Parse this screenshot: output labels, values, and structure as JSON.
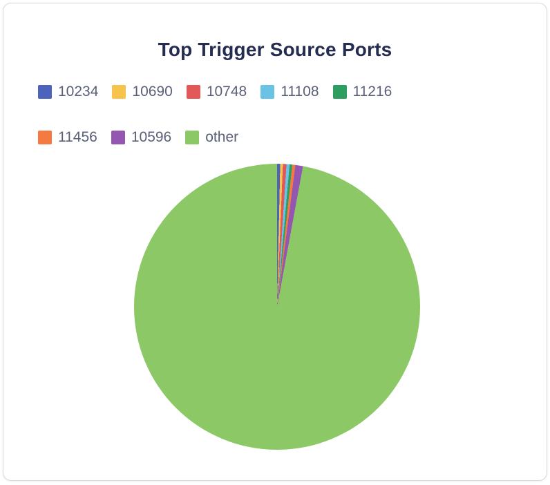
{
  "card": {
    "title": "Top Trigger Source Ports"
  },
  "colors": {
    "title_text": "#242c52",
    "legend_text": "#5a6078",
    "card_border": "#d9d9d9",
    "background": "#ffffff"
  },
  "chart_data": {
    "type": "pie",
    "title": "Top Trigger Source Ports",
    "legend_position": "top-left",
    "start_angle_deg": 0,
    "direction": "clockwise",
    "units": "percent",
    "series": [
      {
        "label": "10234",
        "value": 0.35,
        "color": "#4d64bd"
      },
      {
        "label": "10690",
        "value": 0.3,
        "color": "#f6c44c"
      },
      {
        "label": "10748",
        "value": 0.4,
        "color": "#e25757"
      },
      {
        "label": "11108",
        "value": 0.35,
        "color": "#6ac2e4"
      },
      {
        "label": "11216",
        "value": 0.3,
        "color": "#2e9e60"
      },
      {
        "label": "11456",
        "value": 0.35,
        "color": "#f47a42"
      },
      {
        "label": "10596",
        "value": 0.85,
        "color": "#9357b1"
      },
      {
        "label": "other",
        "value": 97.1,
        "color": "#8cc866"
      }
    ]
  }
}
